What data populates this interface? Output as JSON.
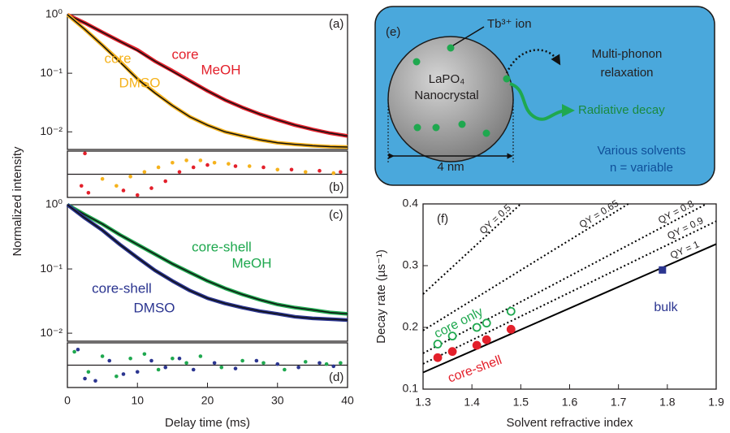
{
  "chart_data": [
    {
      "type": "line",
      "panel": "(a)",
      "ylabel": "Normalized intensity",
      "ylog": true,
      "xlim": [
        0,
        40
      ],
      "ylim": [
        0.005,
        1
      ],
      "yticks": [
        {
          "value": 1,
          "label": "10⁰"
        },
        {
          "value": 0.1,
          "label": "10⁻¹"
        },
        {
          "value": 0.01,
          "label": "10⁻²"
        }
      ],
      "x": [
        0,
        2.5,
        5,
        7.5,
        10,
        12.5,
        15,
        17.5,
        20,
        22.5,
        25,
        27.5,
        30,
        32.5,
        35,
        37.5,
        40
      ],
      "series": [
        {
          "label": [
            "core",
            "MeOH"
          ],
          "color": "#e3202b",
          "values": [
            1,
            0.72,
            0.5,
            0.35,
            0.25,
            0.16,
            0.11,
            0.074,
            0.05,
            0.035,
            0.026,
            0.02,
            0.016,
            0.013,
            0.011,
            0.0095,
            0.0085
          ],
          "fit": [
            1,
            0.72,
            0.5,
            0.35,
            0.245,
            0.16,
            0.108,
            0.073,
            0.05,
            0.035,
            0.026,
            0.02,
            0.016,
            0.013,
            0.011,
            0.0095,
            0.0085
          ]
        },
        {
          "label": [
            "core",
            "DMSO"
          ],
          "color": "#f5b21c",
          "values": [
            1,
            0.56,
            0.3,
            0.16,
            0.08,
            0.047,
            0.028,
            0.018,
            0.013,
            0.01,
            0.0085,
            0.0073,
            0.0065,
            0.0061,
            0.0058,
            0.0056,
            0.0055
          ],
          "fit": [
            1,
            0.56,
            0.3,
            0.155,
            0.08,
            0.046,
            0.028,
            0.018,
            0.013,
            0.01,
            0.0085,
            0.0073,
            0.0065,
            0.0061,
            0.0058,
            0.0056,
            0.0055
          ]
        }
      ]
    },
    {
      "type": "scatter",
      "panel": "(b)",
      "xlim": [
        0,
        40
      ],
      "ylim": [
        -1,
        1
      ],
      "series": [
        {
          "color": "#e3202b",
          "x": [
            2,
            2.5,
            3,
            8,
            10,
            12,
            14,
            16,
            18,
            20,
            24,
            28,
            32,
            36,
            39
          ],
          "values": [
            -0.5,
            0.9,
            -0.8,
            -0.7,
            -0.9,
            -0.6,
            -0.3,
            0.1,
            0.3,
            0.4,
            0.35,
            0.3,
            0.2,
            0.15,
            0.1
          ]
        },
        {
          "color": "#f5b21c",
          "x": [
            5,
            7,
            9,
            11,
            13,
            15,
            17,
            19,
            21,
            23,
            26,
            30,
            34,
            38
          ],
          "values": [
            -0.2,
            -0.5,
            -0.1,
            0.1,
            0.3,
            0.5,
            0.6,
            0.6,
            0.5,
            0.45,
            0.35,
            0.2,
            0.1,
            0.05
          ]
        }
      ]
    },
    {
      "type": "line",
      "panel": "(c)",
      "ylog": true,
      "xlim": [
        0,
        40
      ],
      "ylim": [
        0.0075,
        1
      ],
      "yticks": [
        {
          "value": 1,
          "label": "10⁰"
        },
        {
          "value": 0.1,
          "label": "10⁻¹"
        },
        {
          "value": 0.01,
          "label": "10⁻²"
        }
      ],
      "x": [
        0,
        2.5,
        5,
        7.5,
        10,
        12.5,
        15,
        17.5,
        20,
        22.5,
        25,
        27.5,
        30,
        32.5,
        35,
        37.5,
        40
      ],
      "series": [
        {
          "label": [
            "core-shell",
            "MeOH"
          ],
          "color": "#1fa84f",
          "values": [
            1,
            0.7,
            0.5,
            0.34,
            0.24,
            0.17,
            0.12,
            0.088,
            0.065,
            0.05,
            0.04,
            0.033,
            0.028,
            0.025,
            0.023,
            0.021,
            0.02
          ],
          "fit": [
            1,
            0.7,
            0.5,
            0.34,
            0.24,
            0.17,
            0.12,
            0.088,
            0.065,
            0.05,
            0.04,
            0.033,
            0.028,
            0.025,
            0.023,
            0.021,
            0.02
          ]
        },
        {
          "label": [
            "core-shell",
            "DMSO"
          ],
          "color": "#2b3590",
          "values": [
            1,
            0.62,
            0.4,
            0.24,
            0.15,
            0.095,
            0.065,
            0.046,
            0.035,
            0.029,
            0.025,
            0.022,
            0.02,
            0.018,
            0.017,
            0.0165,
            0.016
          ],
          "fit": [
            1,
            0.62,
            0.4,
            0.24,
            0.15,
            0.095,
            0.065,
            0.046,
            0.035,
            0.029,
            0.025,
            0.022,
            0.02,
            0.018,
            0.017,
            0.0165,
            0.016
          ]
        }
      ]
    },
    {
      "type": "scatter",
      "panel": "(d)",
      "xlabel": "Delay time (ms)",
      "xlim": [
        0,
        40
      ],
      "ylim": [
        -1,
        1
      ],
      "xticks": [
        0,
        10,
        20,
        30,
        40
      ],
      "series": [
        {
          "color": "#1fa84f",
          "x": [
            1,
            3,
            5,
            7,
            9,
            11,
            13,
            15,
            17,
            19,
            22,
            25,
            28,
            31,
            34,
            37,
            39
          ],
          "values": [
            0.6,
            -0.3,
            0.4,
            -0.5,
            0.3,
            0.5,
            -0.2,
            0.3,
            0.1,
            0.4,
            -0.1,
            0.2,
            0.1,
            -0.2,
            0.15,
            0.05,
            0.1
          ]
        },
        {
          "color": "#2b3590",
          "x": [
            1.5,
            2.5,
            4,
            6,
            8,
            10,
            12,
            14,
            16,
            18,
            21,
            24,
            27,
            30,
            33,
            36,
            38
          ],
          "values": [
            0.7,
            -0.6,
            -0.7,
            0.2,
            -0.4,
            -0.3,
            0.2,
            -0.1,
            0.3,
            -0.2,
            0.1,
            -0.15,
            0.2,
            0.05,
            -0.1,
            0.1,
            -0.05
          ]
        }
      ]
    },
    {
      "type": "line",
      "panel": "(f)",
      "xlabel": "Solvent refractive index",
      "ylabel": "Decay rate (µs⁻¹)",
      "xlim": [
        1.3,
        1.9
      ],
      "ylim": [
        0.1,
        0.4
      ],
      "xticks": [
        1.3,
        1.4,
        1.5,
        1.6,
        1.7,
        1.8,
        1.9
      ],
      "yticks": [
        0.1,
        0.2,
        0.3,
        0.4
      ],
      "series": [
        {
          "name": "QY = 0.5",
          "color": "#000000",
          "dash": true,
          "x": [
            1.3,
            1.5
          ],
          "values": [
            0.254,
            0.4
          ]
        },
        {
          "name": "QY = 0.65",
          "color": "#000000",
          "dash": true,
          "x": [
            1.3,
            1.72
          ],
          "values": [
            0.195,
            0.4
          ]
        },
        {
          "name": "QY = 0.8",
          "color": "#000000",
          "dash": true,
          "x": [
            1.3,
            1.88
          ],
          "values": [
            0.158,
            0.4
          ]
        },
        {
          "name": "QY = 0.9",
          "color": "#000000",
          "dash": true,
          "x": [
            1.3,
            1.9
          ],
          "values": [
            0.141,
            0.372
          ]
        },
        {
          "name": "QY = 1",
          "color": "#000000",
          "dash": false,
          "x": [
            1.3,
            1.9
          ],
          "values": [
            0.127,
            0.335
          ]
        },
        {
          "name": "core only",
          "color": "#1fa84f",
          "marker": "open",
          "x": [
            1.33,
            1.36,
            1.41,
            1.43,
            1.48
          ],
          "values": [
            0.173,
            0.186,
            0.2,
            0.207,
            0.226
          ]
        },
        {
          "name": "core-shell",
          "color": "#e3202b",
          "marker": "filled",
          "x": [
            1.33,
            1.36,
            1.41,
            1.43,
            1.48
          ],
          "values": [
            0.151,
            0.161,
            0.171,
            0.18,
            0.197
          ]
        },
        {
          "name": "bulk",
          "color": "#2b3590",
          "marker": "square",
          "x": [
            1.79
          ],
          "values": [
            0.293
          ]
        }
      ]
    }
  ],
  "diagram": {
    "panel": "(e)",
    "ion": "Tb³⁺ ion",
    "crystal": [
      "LaPO₄",
      "Nanocrystal"
    ],
    "relaxation": [
      "Multi-phonon",
      "relaxation"
    ],
    "radiative": "Radiative decay",
    "size": "4 nm",
    "solvent": [
      "Various solvents",
      "n = variable"
    ]
  }
}
